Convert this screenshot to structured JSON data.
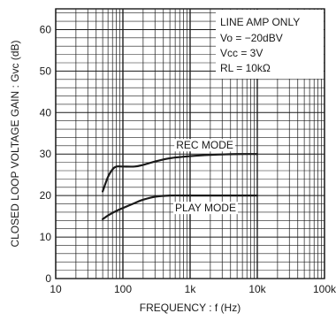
{
  "chart_data": {
    "type": "line",
    "xlabel": "FREQUENCY : f (Hz)",
    "ylabel": "CLOSED LOOP VOLTAGE GAIN : Gvc (dB)",
    "x_scale": "log",
    "xlim": [
      10,
      100000
    ],
    "ylim": [
      0,
      65
    ],
    "grid": true,
    "x_ticks": [
      {
        "value": 10,
        "label": "10"
      },
      {
        "value": 100,
        "label": "100"
      },
      {
        "value": 1000,
        "label": "1k"
      },
      {
        "value": 10000,
        "label": "10k"
      },
      {
        "value": 100000,
        "label": "100k"
      }
    ],
    "y_ticks": [
      {
        "value": 0,
        "label": "0"
      },
      {
        "value": 10,
        "label": "10"
      },
      {
        "value": 20,
        "label": "20"
      },
      {
        "value": 30,
        "label": "30"
      },
      {
        "value": 40,
        "label": "40"
      },
      {
        "value": 50,
        "label": "50"
      },
      {
        "value": 60,
        "label": "60"
      }
    ],
    "conditions": {
      "title": "LINE AMP ONLY",
      "vo": "Vo = −20dBV",
      "vcc": "Vcc = 3V",
      "rl": "RL = 10kΩ"
    },
    "series": [
      {
        "name": "REC MODE",
        "x": [
          50,
          60,
          70,
          80,
          100,
          150,
          200,
          300,
          500,
          1000,
          2000,
          5000,
          10000
        ],
        "values": [
          21,
          24.5,
          26.3,
          27,
          27,
          27,
          27.4,
          28.2,
          29,
          29.5,
          29.8,
          30,
          30
        ]
      },
      {
        "name": "PLAY MODE",
        "x": [
          50,
          60,
          80,
          100,
          150,
          200,
          300,
          500,
          1000,
          2000,
          5000,
          10000
        ],
        "values": [
          14.3,
          15.2,
          16.3,
          17,
          18.2,
          19,
          19.7,
          20,
          20,
          20,
          20,
          20
        ]
      }
    ]
  }
}
